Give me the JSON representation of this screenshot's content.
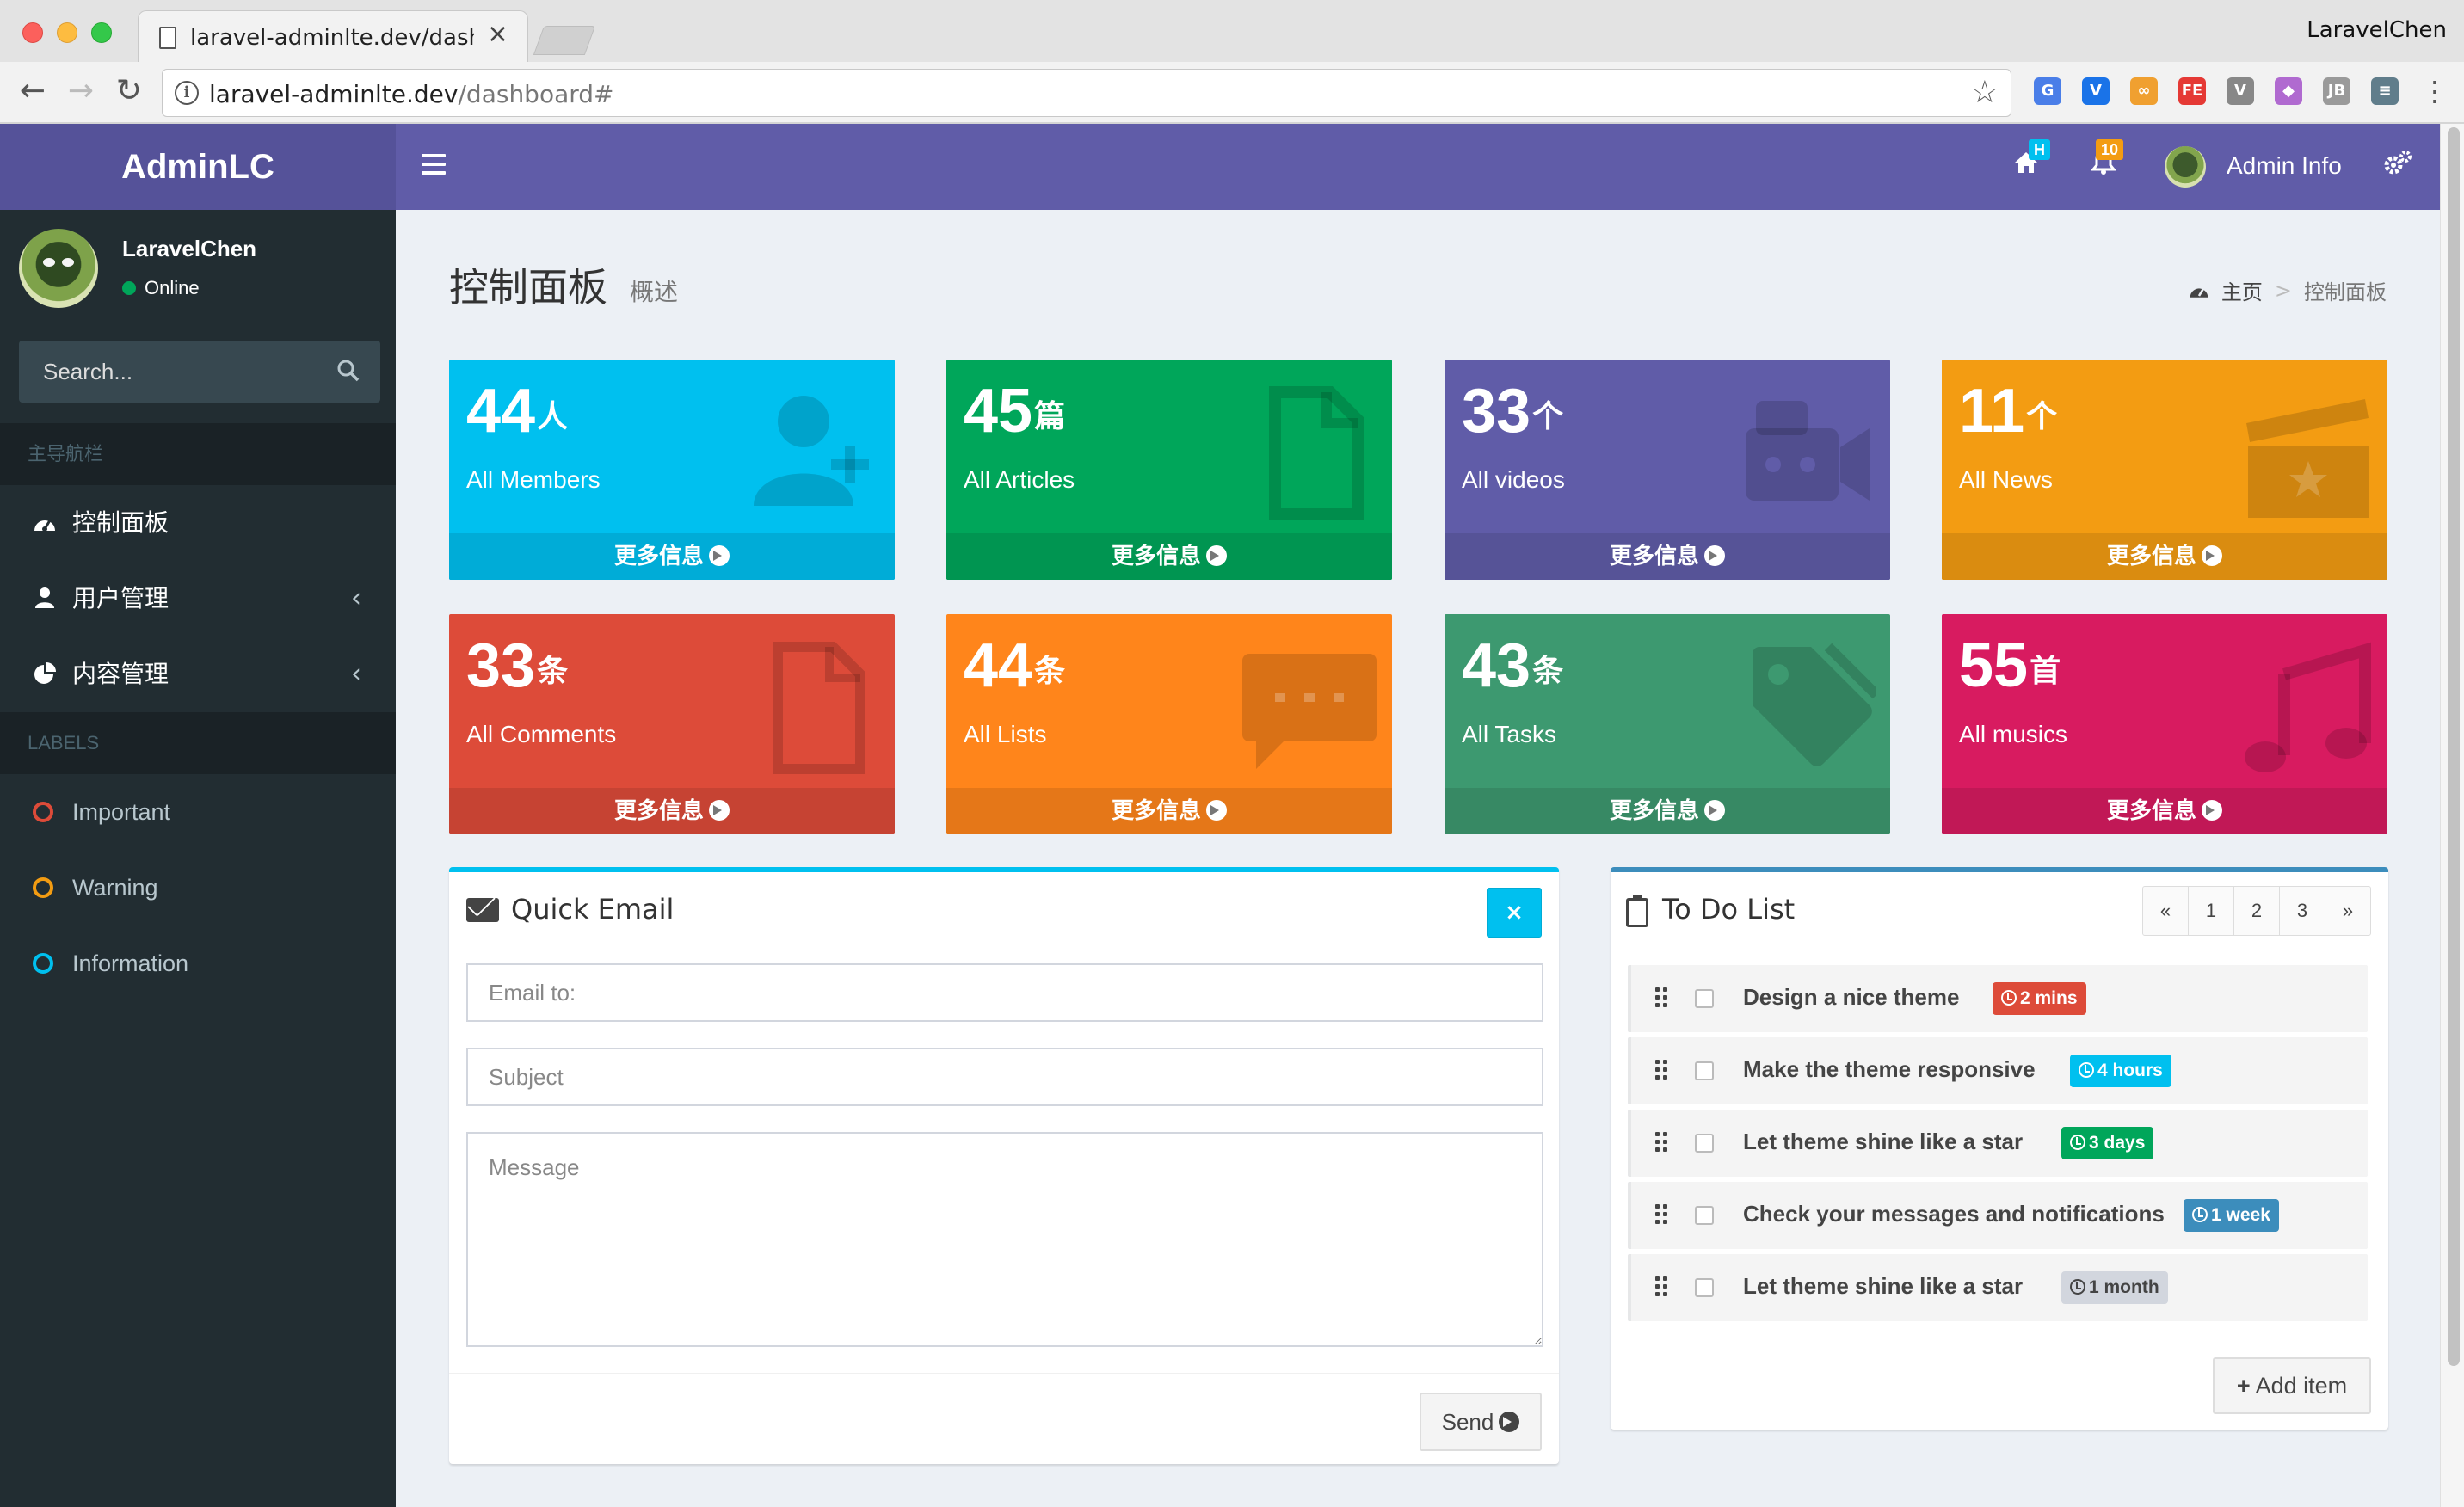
{
  "browser": {
    "tab_title": "laravel-adminlte.dev/dashboard",
    "tab_close": "×",
    "profile_name": "LaravelChen",
    "url_host": "laravel-adminlte.dev",
    "url_path": "/dashboard#",
    "extensions": [
      {
        "icon": "translate-ext-icon",
        "text": "G",
        "color": "#4a7ee8"
      },
      {
        "icon": "vimium-ext-icon",
        "text": "V",
        "color": "#1a73e8"
      },
      {
        "icon": "loop-ext-icon",
        "text": "∞",
        "color": "#f0a030"
      },
      {
        "icon": "fe-ext-icon",
        "text": "FE",
        "color": "#e53935"
      },
      {
        "icon": "vue-ext-icon",
        "text": "V",
        "color": "#888888"
      },
      {
        "icon": "color-ext-icon",
        "text": "◆",
        "color": "#b06ad0"
      },
      {
        "icon": "jb-ext-icon",
        "text": "JB",
        "color": "#9a9a9a"
      },
      {
        "icon": "db-ext-icon",
        "text": "≡",
        "color": "#607d8b"
      }
    ]
  },
  "app": {
    "logo": "AdminLC",
    "header": {
      "home_badge": "H",
      "bell_badge": "10",
      "user_name": "Admin Info"
    },
    "colors": {
      "header": "#605ca8",
      "logo_bg": "#555299",
      "sidebar": "#222d32"
    }
  },
  "sidebar": {
    "user_name": "LaravelChen",
    "status": "Online",
    "search_placeholder": "Search...",
    "nav_header": "主导航栏",
    "items": [
      {
        "label": "控制面板",
        "icon": "dashboard-icon",
        "has_children": false
      },
      {
        "label": "用户管理",
        "icon": "user-icon",
        "has_children": true
      },
      {
        "label": "内容管理",
        "icon": "pie-chart-icon",
        "has_children": true
      }
    ],
    "labels_header": "LABELS",
    "labels": [
      {
        "label": "Important",
        "color": "#dd4b39"
      },
      {
        "label": "Warning",
        "color": "#f39c12"
      },
      {
        "label": "Information",
        "color": "#00c0ef"
      }
    ]
  },
  "page": {
    "title": "控制面板",
    "subtitle": "概述",
    "breadcrumb_home": "主页",
    "breadcrumb_current": "控制面板"
  },
  "stat_boxes": [
    {
      "number": "44",
      "unit": "人",
      "label": "All Members",
      "more": "更多信息",
      "color": "#00c0ef",
      "footer": "#00acd7",
      "icon": "user-plus-icon"
    },
    {
      "number": "45",
      "unit": "篇",
      "label": "All Articles",
      "more": "更多信息",
      "color": "#00a65a",
      "footer": "#009551",
      "icon": "file-icon"
    },
    {
      "number": "33",
      "unit": "个",
      "label": "All videos",
      "more": "更多信息",
      "color": "#605ca8",
      "footer": "#565397",
      "icon": "video-camera-icon"
    },
    {
      "number": "11",
      "unit": "个",
      "label": "All News",
      "more": "更多信息",
      "color": "#f39c12",
      "footer": "#da8c10",
      "icon": "clapperboard-icon"
    },
    {
      "number": "33",
      "unit": "条",
      "label": "All Comments",
      "more": "更多信息",
      "color": "#dd4b39",
      "footer": "#c64333",
      "icon": "file-outline-icon"
    },
    {
      "number": "44",
      "unit": "条",
      "label": "All Lists",
      "more": "更多信息",
      "color": "#ff851b",
      "footer": "#e57718",
      "icon": "comment-icon"
    },
    {
      "number": "43",
      "unit": "条",
      "label": "All Tasks",
      "more": "更多信息",
      "color": "#3d9970",
      "footer": "#378964",
      "icon": "tag-icon"
    },
    {
      "number": "55",
      "unit": "首",
      "label": "All musics",
      "more": "更多信息",
      "color": "#d81b60",
      "footer": "#c11856",
      "icon": "music-icon"
    }
  ],
  "quick_email": {
    "title": "Quick Email",
    "close_label": "×",
    "email_placeholder": "Email to:",
    "subject_placeholder": "Subject",
    "message_placeholder": "Message",
    "send_label": "Send"
  },
  "todo": {
    "title": "To Do List",
    "pagination": [
      "«",
      "1",
      "2",
      "3",
      "»"
    ],
    "items": [
      {
        "text": "Design a nice theme",
        "time": "2 mins",
        "color": "#dd4b39"
      },
      {
        "text": "Make the theme responsive",
        "time": "4 hours",
        "color": "#00c0ef"
      },
      {
        "text": "Let theme shine like a star",
        "time": "3 days",
        "color": "#00a65a"
      },
      {
        "text": "Check your messages and notifications",
        "time": "1 week",
        "color": "#3c8dbc"
      },
      {
        "text": "Let theme shine like a star",
        "time": "1 month",
        "color": "#d2d6de"
      }
    ],
    "add_label": "Add item"
  }
}
